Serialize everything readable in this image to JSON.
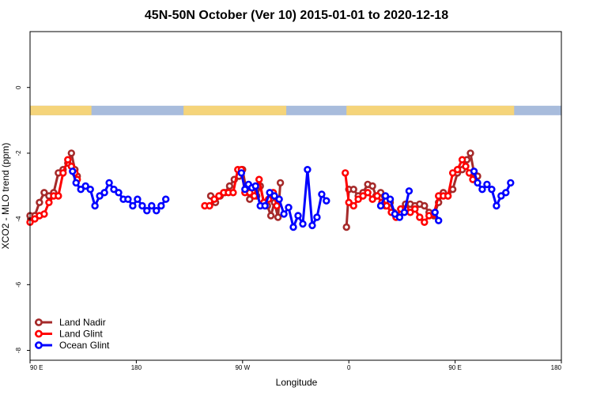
{
  "chart_data": {
    "type": "line",
    "title": "45N-50N October (Ver 10)   2015-01-01 to 2020-12-18",
    "xlabel": "Longitude",
    "ylabel": "XCO2 - MLO trend (ppm)",
    "x_ticks": [
      {
        "value": 90,
        "label": "90 E"
      },
      {
        "value": 180,
        "label": "180"
      },
      {
        "value": 270,
        "label": "90 W"
      },
      {
        "value": 360,
        "label": "0"
      },
      {
        "value": 450,
        "label": "90 E"
      },
      {
        "value": 540,
        "label": "180"
      }
    ],
    "xlim": [
      90,
      540
    ],
    "y_ticks": [
      -8,
      -6,
      -4,
      -2,
      0
    ],
    "ylim": [
      -8.3,
      1.7
    ],
    "land_strip": {
      "y_center": -0.7,
      "land_color": "#F5D47A",
      "ocean_color": "#A8BCDC",
      "land_ranges": [
        [
          90,
          142
        ],
        [
          220,
          307
        ],
        [
          358,
          500
        ]
      ]
    },
    "series": [
      {
        "name": "Land Nadir",
        "color": "#A52A2A",
        "segments": [
          [
            [
              90,
              -3.9
            ],
            [
              94,
              -3.9
            ],
            [
              98,
              -3.5
            ],
            [
              102,
              -3.2
            ],
            [
              106,
              -3.3
            ],
            [
              110,
              -3.2
            ],
            [
              114,
              -2.6
            ],
            [
              118,
              -2.5
            ],
            [
              122,
              -2.3
            ],
            [
              125,
              -2.0
            ],
            [
              128,
              -2.5
            ],
            [
              130,
              -2.7
            ]
          ],
          [
            [
              243,
              -3.3
            ],
            [
              247,
              -3.5
            ],
            [
              251,
              -3.3
            ],
            [
              255,
              -3.2
            ],
            [
              259,
              -3.0
            ],
            [
              263,
              -2.8
            ],
            [
              267,
              -2.7
            ],
            [
              270,
              -2.5
            ],
            [
              273,
              -3.1
            ],
            [
              276,
              -3.4
            ],
            [
              279,
              -3.2
            ],
            [
              282,
              -3.3
            ],
            [
              285,
              -3.0
            ],
            [
              288,
              -3.5
            ],
            [
              291,
              -3.6
            ],
            [
              294,
              -3.9
            ],
            [
              297,
              -3.5
            ],
            [
              300,
              -3.95
            ],
            [
              302,
              -2.9
            ]
          ],
          [
            [
              358,
              -4.25
            ],
            [
              360,
              -3.1
            ],
            [
              364,
              -3.1
            ],
            [
              368,
              -3.3
            ],
            [
              372,
              -3.2
            ],
            [
              376,
              -2.95
            ],
            [
              380,
              -3.0
            ],
            [
              383,
              -3.3
            ],
            [
              387,
              -3.2
            ],
            [
              391,
              -3.6
            ],
            [
              395,
              -3.5
            ],
            [
              398,
              -3.8
            ]
          ],
          [
            [
              404,
              -3.7
            ],
            [
              408,
              -3.55
            ],
            [
              412,
              -3.55
            ],
            [
              416,
              -3.6
            ],
            [
              420,
              -3.55
            ],
            [
              424,
              -3.6
            ],
            [
              428,
              -3.8
            ],
            [
              432,
              -3.9
            ],
            [
              436,
              -3.5
            ],
            [
              440,
              -3.2
            ],
            [
              444,
              -3.3
            ],
            [
              448,
              -3.1
            ],
            [
              452,
              -2.6
            ],
            [
              456,
              -2.5
            ],
            [
              460,
              -2.2
            ],
            [
              463,
              -2.0
            ],
            [
              466,
              -2.6
            ],
            [
              469,
              -2.7
            ]
          ]
        ]
      },
      {
        "name": "Land Glint",
        "color": "#FF0000",
        "segments": [
          [
            [
              90,
              -4.1
            ],
            [
              94,
              -4.0
            ],
            [
              98,
              -3.9
            ],
            [
              102,
              -3.85
            ],
            [
              106,
              -3.5
            ],
            [
              110,
              -3.3
            ],
            [
              114,
              -3.3
            ],
            [
              118,
              -2.6
            ],
            [
              122,
              -2.2
            ],
            [
              125,
              -2.4
            ],
            [
              128,
              -2.6
            ],
            [
              130,
              -2.8
            ]
          ],
          [
            [
              238,
              -3.6
            ],
            [
              242,
              -3.6
            ],
            [
              246,
              -3.4
            ],
            [
              250,
              -3.3
            ],
            [
              254,
              -3.2
            ],
            [
              258,
              -3.2
            ],
            [
              262,
              -3.2
            ],
            [
              266,
              -2.5
            ],
            [
              269,
              -2.5
            ],
            [
              272,
              -3.2
            ],
            [
              276,
              -3.2
            ],
            [
              280,
              -3.3
            ],
            [
              284,
              -2.8
            ],
            [
              288,
              -3.5
            ],
            [
              292,
              -3.4
            ],
            [
              296,
              -3.2
            ],
            [
              299,
              -3.6
            ]
          ],
          [
            [
              357,
              -2.6
            ],
            [
              360,
              -3.5
            ],
            [
              364,
              -3.6
            ],
            [
              368,
              -3.4
            ],
            [
              372,
              -3.3
            ],
            [
              376,
              -3.2
            ],
            [
              380,
              -3.4
            ],
            [
              384,
              -3.3
            ],
            [
              388,
              -3.5
            ],
            [
              392,
              -3.6
            ],
            [
              396,
              -3.8
            ],
            [
              400,
              -3.95
            ],
            [
              404,
              -3.7
            ],
            [
              408,
              -3.7
            ],
            [
              412,
              -3.8
            ],
            [
              416,
              -3.7
            ],
            [
              420,
              -3.95
            ],
            [
              424,
              -4.1
            ],
            [
              428,
              -3.9
            ],
            [
              432,
              -3.85
            ],
            [
              436,
              -3.3
            ],
            [
              440,
              -3.3
            ],
            [
              444,
              -3.3
            ],
            [
              448,
              -2.6
            ],
            [
              452,
              -2.5
            ],
            [
              456,
              -2.2
            ],
            [
              459,
              -2.4
            ],
            [
              462,
              -2.6
            ],
            [
              465,
              -2.8
            ]
          ]
        ]
      },
      {
        "name": "Ocean Glint",
        "color": "#0000FF",
        "segments": [
          [
            [
              126,
              -2.55
            ],
            [
              129,
              -2.9
            ],
            [
              133,
              -3.1
            ],
            [
              137,
              -3.0
            ],
            [
              141,
              -3.1
            ],
            [
              145,
              -3.6
            ],
            [
              149,
              -3.3
            ],
            [
              153,
              -3.2
            ],
            [
              157,
              -2.9
            ],
            [
              161,
              -3.1
            ],
            [
              165,
              -3.2
            ],
            [
              169,
              -3.4
            ],
            [
              173,
              -3.4
            ],
            [
              177,
              -3.6
            ],
            [
              181,
              -3.4
            ],
            [
              185,
              -3.6
            ],
            [
              189,
              -3.75
            ],
            [
              193,
              -3.6
            ],
            [
              197,
              -3.75
            ],
            [
              201,
              -3.6
            ],
            [
              205,
              -3.4
            ]
          ],
          [
            [
              269,
              -2.6
            ],
            [
              272,
              -3.1
            ],
            [
              275,
              -2.95
            ],
            [
              278,
              -3.05
            ],
            [
              281,
              -3.0
            ],
            [
              285,
              -3.6
            ],
            [
              289,
              -3.6
            ],
            [
              293,
              -3.2
            ],
            [
              297,
              -3.3
            ],
            [
              301,
              -3.4
            ],
            [
              305,
              -3.85
            ],
            [
              309,
              -3.65
            ],
            [
              313,
              -4.25
            ],
            [
              317,
              -3.9
            ],
            [
              321,
              -4.15
            ],
            [
              325,
              -2.5
            ],
            [
              329,
              -4.2
            ],
            [
              333,
              -3.95
            ],
            [
              337,
              -3.25
            ],
            [
              341,
              -3.45
            ]
          ],
          [
            [
              387,
              -3.6
            ],
            [
              391,
              -3.3
            ],
            [
              395,
              -3.4
            ],
            [
              399,
              -3.85
            ],
            [
              403,
              -3.95
            ],
            [
              407,
              -3.8
            ],
            [
              411,
              -3.15
            ]
          ],
          [
            [
              433,
              -3.8
            ],
            [
              436,
              -4.05
            ]
          ],
          [
            [
              466,
              -2.55
            ],
            [
              469,
              -2.9
            ],
            [
              473,
              -3.1
            ],
            [
              477,
              -2.95
            ],
            [
              481,
              -3.1
            ],
            [
              485,
              -3.6
            ],
            [
              489,
              -3.3
            ],
            [
              493,
              -3.2
            ],
            [
              497,
              -2.9
            ]
          ]
        ]
      }
    ],
    "legend_position": "bottom-left"
  }
}
